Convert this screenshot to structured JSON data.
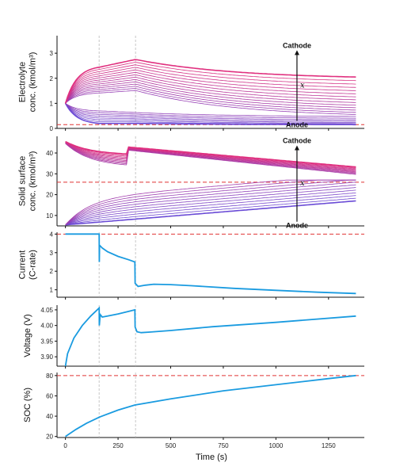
{
  "chart_data": [
    {
      "type": "line",
      "ylabel": [
        "Electrolyte",
        "conc. (kmol/m³)"
      ],
      "ylim": [
        0,
        3.7
      ],
      "yticks": [
        0,
        1,
        2,
        3
      ],
      "reference_y": 0.15,
      "annotations": {
        "top": "Cathode",
        "bottom": "Anode",
        "variable": "x"
      },
      "series_description": "family of curves from Cathode (magenta, top) to Anode (purple, bottom)",
      "colors": {
        "cathode": "#e0307f",
        "anode": "#6a4bd6",
        "reference": "#e03535"
      }
    },
    {
      "type": "line",
      "ylabel": [
        "Solid surface",
        "conc. (kmol/m³)"
      ],
      "ylim": [
        5,
        48
      ],
      "yticks": [
        10,
        20,
        30,
        40
      ],
      "reference_y": 26,
      "annotations": {
        "top": "Cathode",
        "bottom": "Anode",
        "variable": "x"
      },
      "colors": {
        "cathode": "#e0307f",
        "anode": "#6a4bd6",
        "reference": "#e03535"
      }
    },
    {
      "type": "line",
      "ylabel": [
        "Current",
        "(C-rate)"
      ],
      "ylim": [
        0.6,
        4.1
      ],
      "yticks": [
        1,
        2,
        3,
        4
      ],
      "reference_y": 4,
      "x": [
        0,
        160,
        161,
        162,
        175,
        200,
        250,
        300,
        330,
        331,
        345,
        380,
        420,
        500,
        600,
        800,
        1000,
        1200,
        1380
      ],
      "values": [
        4,
        4,
        2.5,
        3.4,
        3.25,
        3.05,
        2.8,
        2.62,
        2.5,
        1.35,
        1.18,
        1.25,
        1.3,
        1.28,
        1.22,
        1.08,
        0.97,
        0.87,
        0.8
      ],
      "colors": {
        "line": "#1a9be0",
        "reference": "#e03535"
      }
    },
    {
      "type": "line",
      "ylabel": [
        "Voltage (V)"
      ],
      "ylim": [
        3.87,
        4.065
      ],
      "yticks": [
        3.9,
        3.95,
        4.0,
        4.05
      ],
      "x": [
        0,
        10,
        40,
        80,
        120,
        160,
        161,
        165,
        175,
        200,
        250,
        300,
        330,
        331,
        340,
        360,
        400,
        500,
        700,
        1000,
        1380
      ],
      "values": [
        3.87,
        3.91,
        3.96,
        4.0,
        4.03,
        4.056,
        4.0,
        4.035,
        4.027,
        4.03,
        4.037,
        4.045,
        4.05,
        3.995,
        3.98,
        3.977,
        3.979,
        3.984,
        3.996,
        4.01,
        4.03
      ],
      "colors": {
        "line": "#1a9be0"
      }
    },
    {
      "type": "line",
      "ylabel": [
        "SOC (%)"
      ],
      "ylim": [
        19,
        83
      ],
      "yticks": [
        20,
        40,
        60,
        80
      ],
      "reference_y": 80,
      "x": [
        0,
        50,
        100,
        160,
        250,
        330,
        500,
        750,
        1000,
        1250,
        1380
      ],
      "values": [
        20,
        27,
        33,
        39,
        46,
        51,
        57,
        65,
        71,
        77,
        80
      ],
      "colors": {
        "line": "#1a9be0",
        "reference": "#e03535"
      }
    }
  ],
  "shared_x": {
    "label": "Time (s)",
    "ticks": [
      0,
      250,
      500,
      750,
      1000,
      1250
    ],
    "xlim": [
      -40,
      1420
    ],
    "event_lines": [
      160,
      333
    ]
  }
}
